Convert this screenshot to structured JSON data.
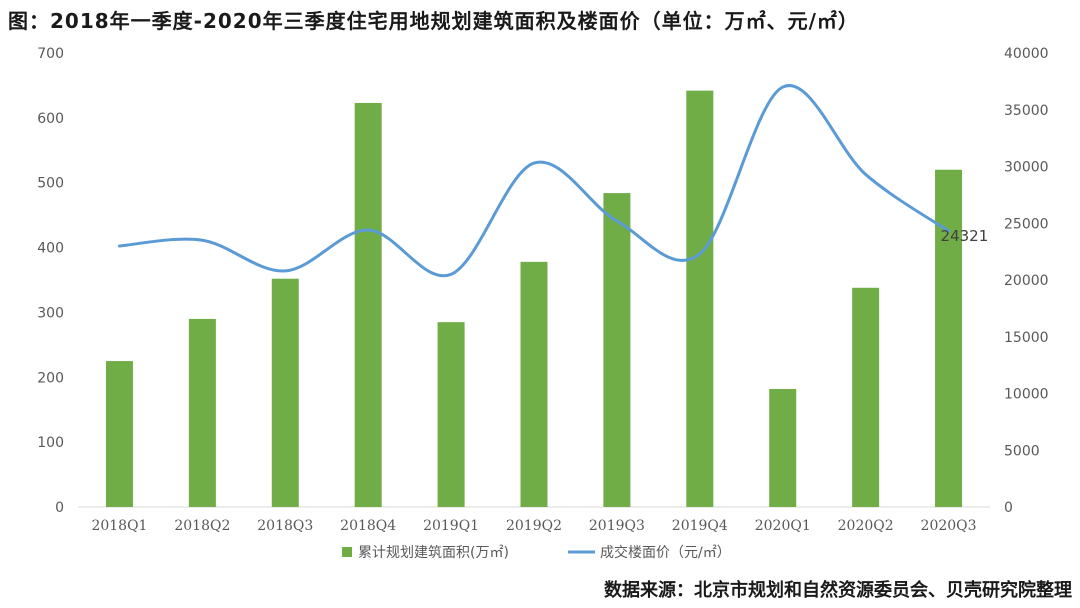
{
  "title": "图：2018年一季度-2020年三季度住宅用地规划建筑面积及楼面价（单位：万㎡、元/㎡）",
  "source": "数据来源：北京市规划和自然资源委员会、贝壳研究院整理",
  "colors": {
    "bar": "#70ad47",
    "line": "#5b9bd5",
    "axis": "#d9d9d9",
    "text": "#595959"
  },
  "chart_data": {
    "type": "bar+line",
    "title": "图：2018年一季度-2020年三季度住宅用地规划建筑面积及楼面价（单位：万㎡、元/㎡）",
    "categories": [
      "2018Q1",
      "2018Q2",
      "2018Q3",
      "2018Q4",
      "2019Q1",
      "2019Q2",
      "2019Q3",
      "2019Q4",
      "2020Q1",
      "2020Q2",
      "2020Q3"
    ],
    "series": [
      {
        "name": "累计规划建筑面积(万㎡)",
        "type": "bar",
        "axis": "left",
        "values": [
          225,
          290,
          352,
          623,
          285,
          378,
          484,
          642,
          182,
          338,
          520
        ]
      },
      {
        "name": "成交楼面价（元/㎡）",
        "type": "line",
        "axis": "right",
        "values": [
          23000,
          23500,
          20800,
          24400,
          20500,
          30300,
          25200,
          22300,
          37000,
          29300,
          24321
        ]
      }
    ],
    "left_axis": {
      "min": 0,
      "max": 700,
      "step": 100
    },
    "right_axis": {
      "min": 0,
      "max": 40000,
      "step": 5000
    },
    "data_labels": [
      {
        "series": 1,
        "index": 10,
        "text": "24321"
      }
    ],
    "grid": false,
    "legend_position": "bottom"
  }
}
